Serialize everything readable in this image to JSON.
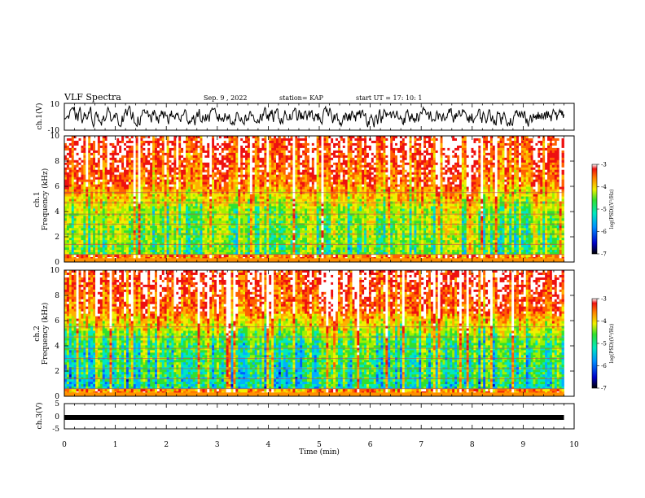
{
  "header": {
    "title": "VLF Spectra",
    "date": "Sep. 9 , 2022",
    "station": "station= KAP",
    "start": "start  UT =   17: 10: 1"
  },
  "chart_data": [
    {
      "type": "line",
      "name": "ch1-waveform",
      "ylabel": "ch.1(V)",
      "ylim": [
        -10,
        10
      ],
      "yticks": [
        "10",
        "-10"
      ],
      "xlim": [
        0,
        10
      ]
    },
    {
      "type": "heatmap",
      "name": "ch1-spectrogram",
      "ylabel": "ch.1\nFrequency  (kHz)",
      "ylabel_top": "ch.1",
      "ylabel_bottom": "Frequency  (kHz)",
      "ylim": [
        0,
        10
      ],
      "yticks": [
        "0",
        "2",
        "4",
        "6",
        "8",
        "10"
      ],
      "xlim": [
        0,
        10
      ],
      "data_extent_x": [
        0,
        9.8
      ],
      "colorbar": {
        "label": "log(PSD)(V²/Hz)",
        "ticks": [
          "-3",
          "-4",
          "-5",
          "-6",
          "-7"
        ],
        "range": [
          -7,
          -3
        ]
      }
    },
    {
      "type": "heatmap",
      "name": "ch2-spectrogram",
      "ylabel": "ch.2\nFrequency  (kHz)",
      "ylabel_top": "ch.2",
      "ylabel_bottom": "Frequency  (kHz)",
      "ylim": [
        0,
        10
      ],
      "yticks": [
        "0",
        "2",
        "4",
        "6",
        "8",
        "10"
      ],
      "xlim": [
        0,
        10
      ],
      "data_extent_x": [
        0,
        9.8
      ],
      "colorbar": {
        "label": "log(PSD)(V²/Hz)",
        "ticks": [
          "-3",
          "-4",
          "-5",
          "-6",
          "-7"
        ],
        "range": [
          -7,
          -3
        ]
      }
    },
    {
      "type": "line",
      "name": "ch3-waveform",
      "ylabel": "ch.3(V)",
      "ylim": [
        -5,
        5
      ],
      "yticks": [
        "5",
        "0",
        "-5"
      ],
      "value": -0.5,
      "xlim": [
        0,
        10
      ],
      "xlabel": "Time  (min)",
      "xticks": [
        "0",
        "1",
        "2",
        "3",
        "4",
        "5",
        "6",
        "7",
        "8",
        "9",
        "10"
      ]
    }
  ]
}
